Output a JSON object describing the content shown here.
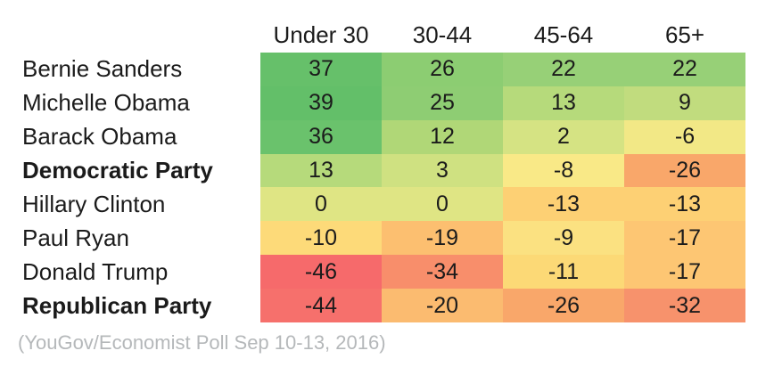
{
  "header": {
    "col_labels": [
      "Under 30",
      "30-44",
      "45-64",
      "65+"
    ]
  },
  "rows": [
    {
      "name": "Bernie Sanders",
      "bold": false,
      "values": [
        "37",
        "26",
        "22",
        "22"
      ],
      "colors": [
        "#66c06a",
        "#8ccd72",
        "#97d077",
        "#97d077"
      ]
    },
    {
      "name": "Michelle Obama",
      "bold": false,
      "values": [
        "39",
        "25",
        "13",
        "9"
      ],
      "colors": [
        "#63bf69",
        "#8ecd73",
        "#b6da7b",
        "#c1dc7e"
      ]
    },
    {
      "name": "Barack Obama",
      "bold": false,
      "values": [
        "36",
        "12",
        "2",
        "-6"
      ],
      "colors": [
        "#6ac26c",
        "#b0d777",
        "#d5e383",
        "#f2e886"
      ]
    },
    {
      "name": "Democratic Party",
      "bold": true,
      "values": [
        "13",
        "3",
        "-8",
        "-26"
      ],
      "colors": [
        "#b6da7b",
        "#cfe181",
        "#f9e987",
        "#f9a76a"
      ]
    },
    {
      "name": "Hillary Clinton",
      "bold": false,
      "values": [
        "0",
        "0",
        "-13",
        "-13"
      ],
      "colors": [
        "#dfe584",
        "#dfe584",
        "#fdd074",
        "#fdd074"
      ]
    },
    {
      "name": "Paul Ryan",
      "bold": false,
      "values": [
        "-10",
        "-19",
        "-9",
        "-17"
      ],
      "colors": [
        "#fdda79",
        "#fcbf70",
        "#fbe181",
        "#fdc673"
      ]
    },
    {
      "name": "Donald Trump",
      "bold": false,
      "values": [
        "-46",
        "-34",
        "-11",
        "-17"
      ],
      "colors": [
        "#f66a6b",
        "#f88e6b",
        "#fcd976",
        "#fdc673"
      ]
    },
    {
      "name": "Republican Party",
      "bold": true,
      "values": [
        "-44",
        "-20",
        "-26",
        "-32"
      ],
      "colors": [
        "#f6706c",
        "#fbbb70",
        "#f9a76a",
        "#f7926c"
      ]
    }
  ],
  "footer": {
    "source": "(YouGov/Economist Poll Sep 10-13, 2016)"
  },
  "colors": {
    "text": "#1b1b1b",
    "footer_text": "#b5b8ba",
    "background": "#ffffff"
  },
  "chart_data": {
    "type": "heatmap",
    "title": "",
    "columns": [
      "Under 30",
      "30-44",
      "45-64",
      "65+"
    ],
    "rows": [
      "Bernie Sanders",
      "Michelle Obama",
      "Barack Obama",
      "Democratic Party",
      "Hillary Clinton",
      "Paul Ryan",
      "Donald Trump",
      "Republican Party"
    ],
    "values": [
      [
        37,
        26,
        22,
        22
      ],
      [
        39,
        25,
        13,
        9
      ],
      [
        36,
        12,
        2,
        -6
      ],
      [
        13,
        3,
        -8,
        -26
      ],
      [
        0,
        0,
        -13,
        -13
      ],
      [
        -10,
        -19,
        -9,
        -17
      ],
      [
        -46,
        -34,
        -11,
        -17
      ],
      [
        -44,
        -20,
        -26,
        -32
      ]
    ],
    "colormap": "red-yellow-green",
    "value_range_observed": [
      -46,
      39
    ],
    "annotation": "(YouGov/Economist Poll Sep 10-13, 2016)",
    "legend": "none",
    "grid": false
  }
}
